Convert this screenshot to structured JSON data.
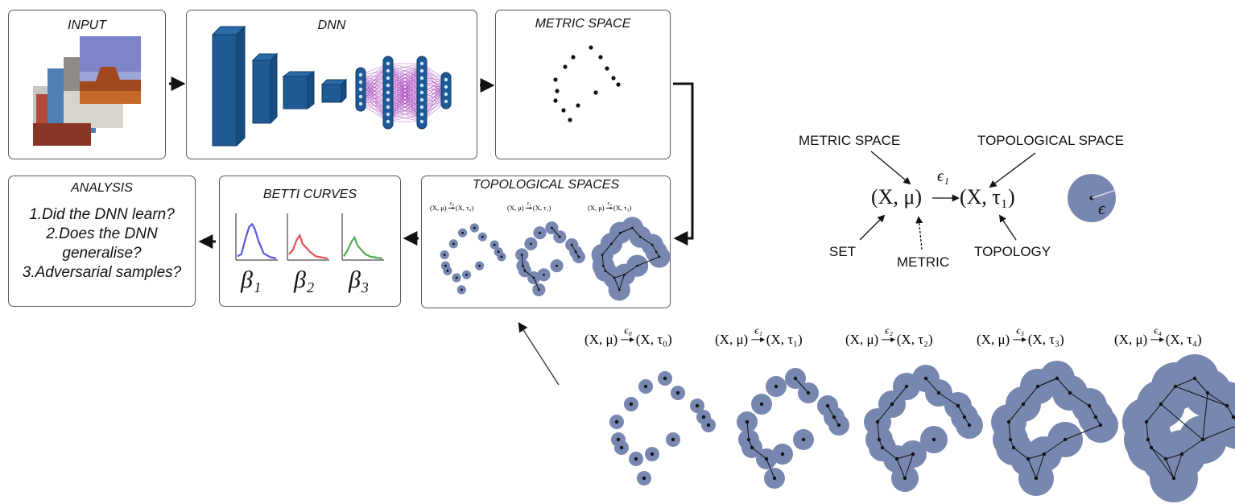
{
  "pipeline": {
    "input_title": "INPUT",
    "dnn_title": "DNN",
    "metric_space_title": "METRIC SPACE",
    "topological_spaces_title": "TOPOLOGICAL SPACES",
    "betti_curves_title": "BETTI CURVES",
    "analysis_title": "ANALYSIS",
    "analysis_questions": [
      "1.Did the DNN learn?",
      "2.Does the DNN",
      "generalise?",
      "3.Adversarial samples?"
    ],
    "betti_labels": [
      "β₁",
      "β₂",
      "β₃"
    ],
    "betti_colors": [
      "#3c3cd8",
      "#e03030",
      "#3a9a3a"
    ],
    "mini_transitions": [
      {
        "eps": "ε₀",
        "from": "(X, μ)",
        "to": "(X, τ₀)"
      },
      {
        "eps": "ε₁",
        "from": "(X, μ)",
        "to": "(X, τ₁)"
      },
      {
        "eps": "ε₃",
        "from": "(X, μ)",
        "to": "(X, τ₃)"
      }
    ]
  },
  "legend": {
    "metric_space_label": "METRIC SPACE",
    "topological_space_label": "TOPOLOGICAL SPACE",
    "set_label": "SET",
    "metric_label": "METRIC",
    "topology_label": "TOPOLOGY",
    "formula_left": "(X, μ)",
    "formula_eps": "ϵ₁",
    "formula_right": "(X, τ₁)",
    "ball_label": "ϵ"
  },
  "filtration": [
    {
      "eps": "ϵ₀",
      "from": "(X, μ)",
      "to": "(X, τ₀)"
    },
    {
      "eps": "ϵ₁",
      "from": "(X, μ)",
      "to": "(X, τ₁)"
    },
    {
      "eps": "ϵ₂",
      "from": "(X, μ)",
      "to": "(X, τ₂)"
    },
    {
      "eps": "ϵ₃",
      "from": "(X, μ)",
      "to": "(X, τ₃)"
    },
    {
      "eps": "ϵ₄",
      "from": "(X, μ)",
      "to": "(X, τ₄)"
    }
  ],
  "colors": {
    "dnn_blue": "#1f5a94",
    "dnn_purple": "#a034b8",
    "ball_fill": "#7787b0",
    "box_border": "#5a5a5a"
  }
}
